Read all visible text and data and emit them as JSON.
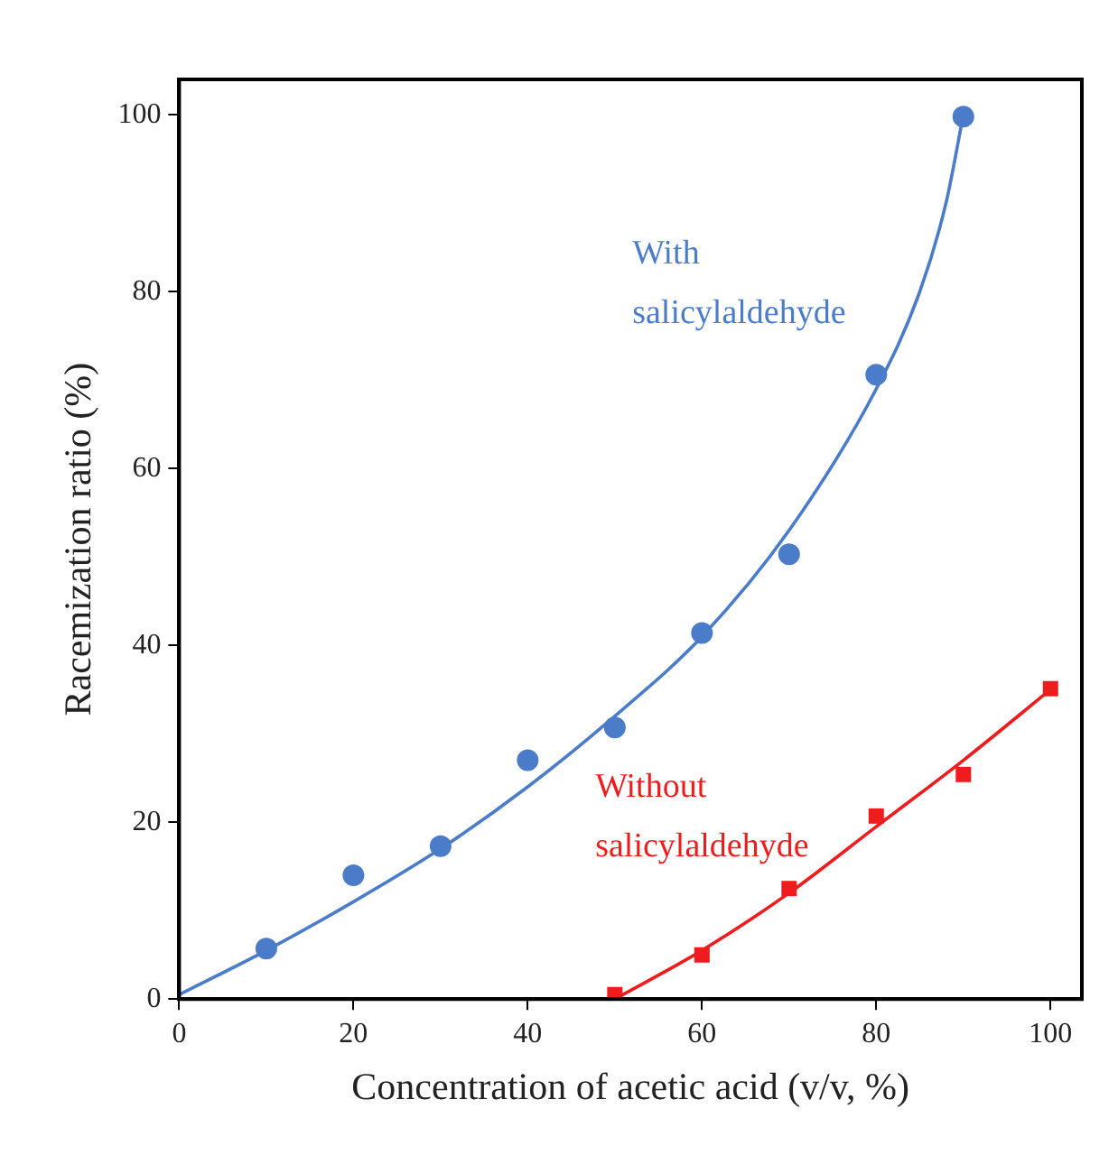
{
  "chart_data": {
    "type": "scatter",
    "xlabel": "Concentration of acetic acid (v/v, %)",
    "ylabel": "Racemization ratio (%)",
    "xlim": [
      0,
      103.6
    ],
    "ylim": [
      0,
      104
    ],
    "xticks": [
      0,
      20,
      40,
      60,
      80,
      100
    ],
    "yticks": [
      0,
      20,
      40,
      60,
      80,
      100
    ],
    "grid": false,
    "legend": false,
    "series": [
      {
        "color": "#4a7cc9",
        "marker": "circle",
        "x": [
          10,
          20,
          30,
          40,
          50,
          60,
          70,
          80,
          90
        ],
        "values": [
          5.7,
          14,
          17.3,
          27,
          30.7,
          41.4,
          50.3,
          70.6,
          99.8
        ]
      },
      {
        "type": "line",
        "color": "#4a7cc9",
        "marker": "none",
        "line_style": "solid",
        "x": [
          0,
          10,
          20,
          30,
          40,
          50,
          60,
          70,
          80,
          85,
          88,
          90
        ],
        "values": [
          0.5,
          5.5,
          11,
          17,
          24,
          32,
          41,
          53,
          69,
          80,
          90,
          100
        ]
      },
      {
        "color": "#ee1c1c",
        "marker": "square",
        "x": [
          50,
          60,
          70,
          80,
          90,
          100
        ],
        "values": [
          0.5,
          5,
          12.5,
          20.7,
          25.4,
          35.1
        ]
      },
      {
        "type": "line",
        "color": "#ee1c1c",
        "marker": "none",
        "line_style": "solid",
        "x": [
          50,
          60,
          70,
          80,
          90,
          100
        ],
        "values": [
          0,
          5.5,
          12,
          19.5,
          27,
          35
        ]
      }
    ],
    "annotations": [
      "With\nsalicylaldehyde",
      "Without\nsalicylaldehyde"
    ]
  }
}
